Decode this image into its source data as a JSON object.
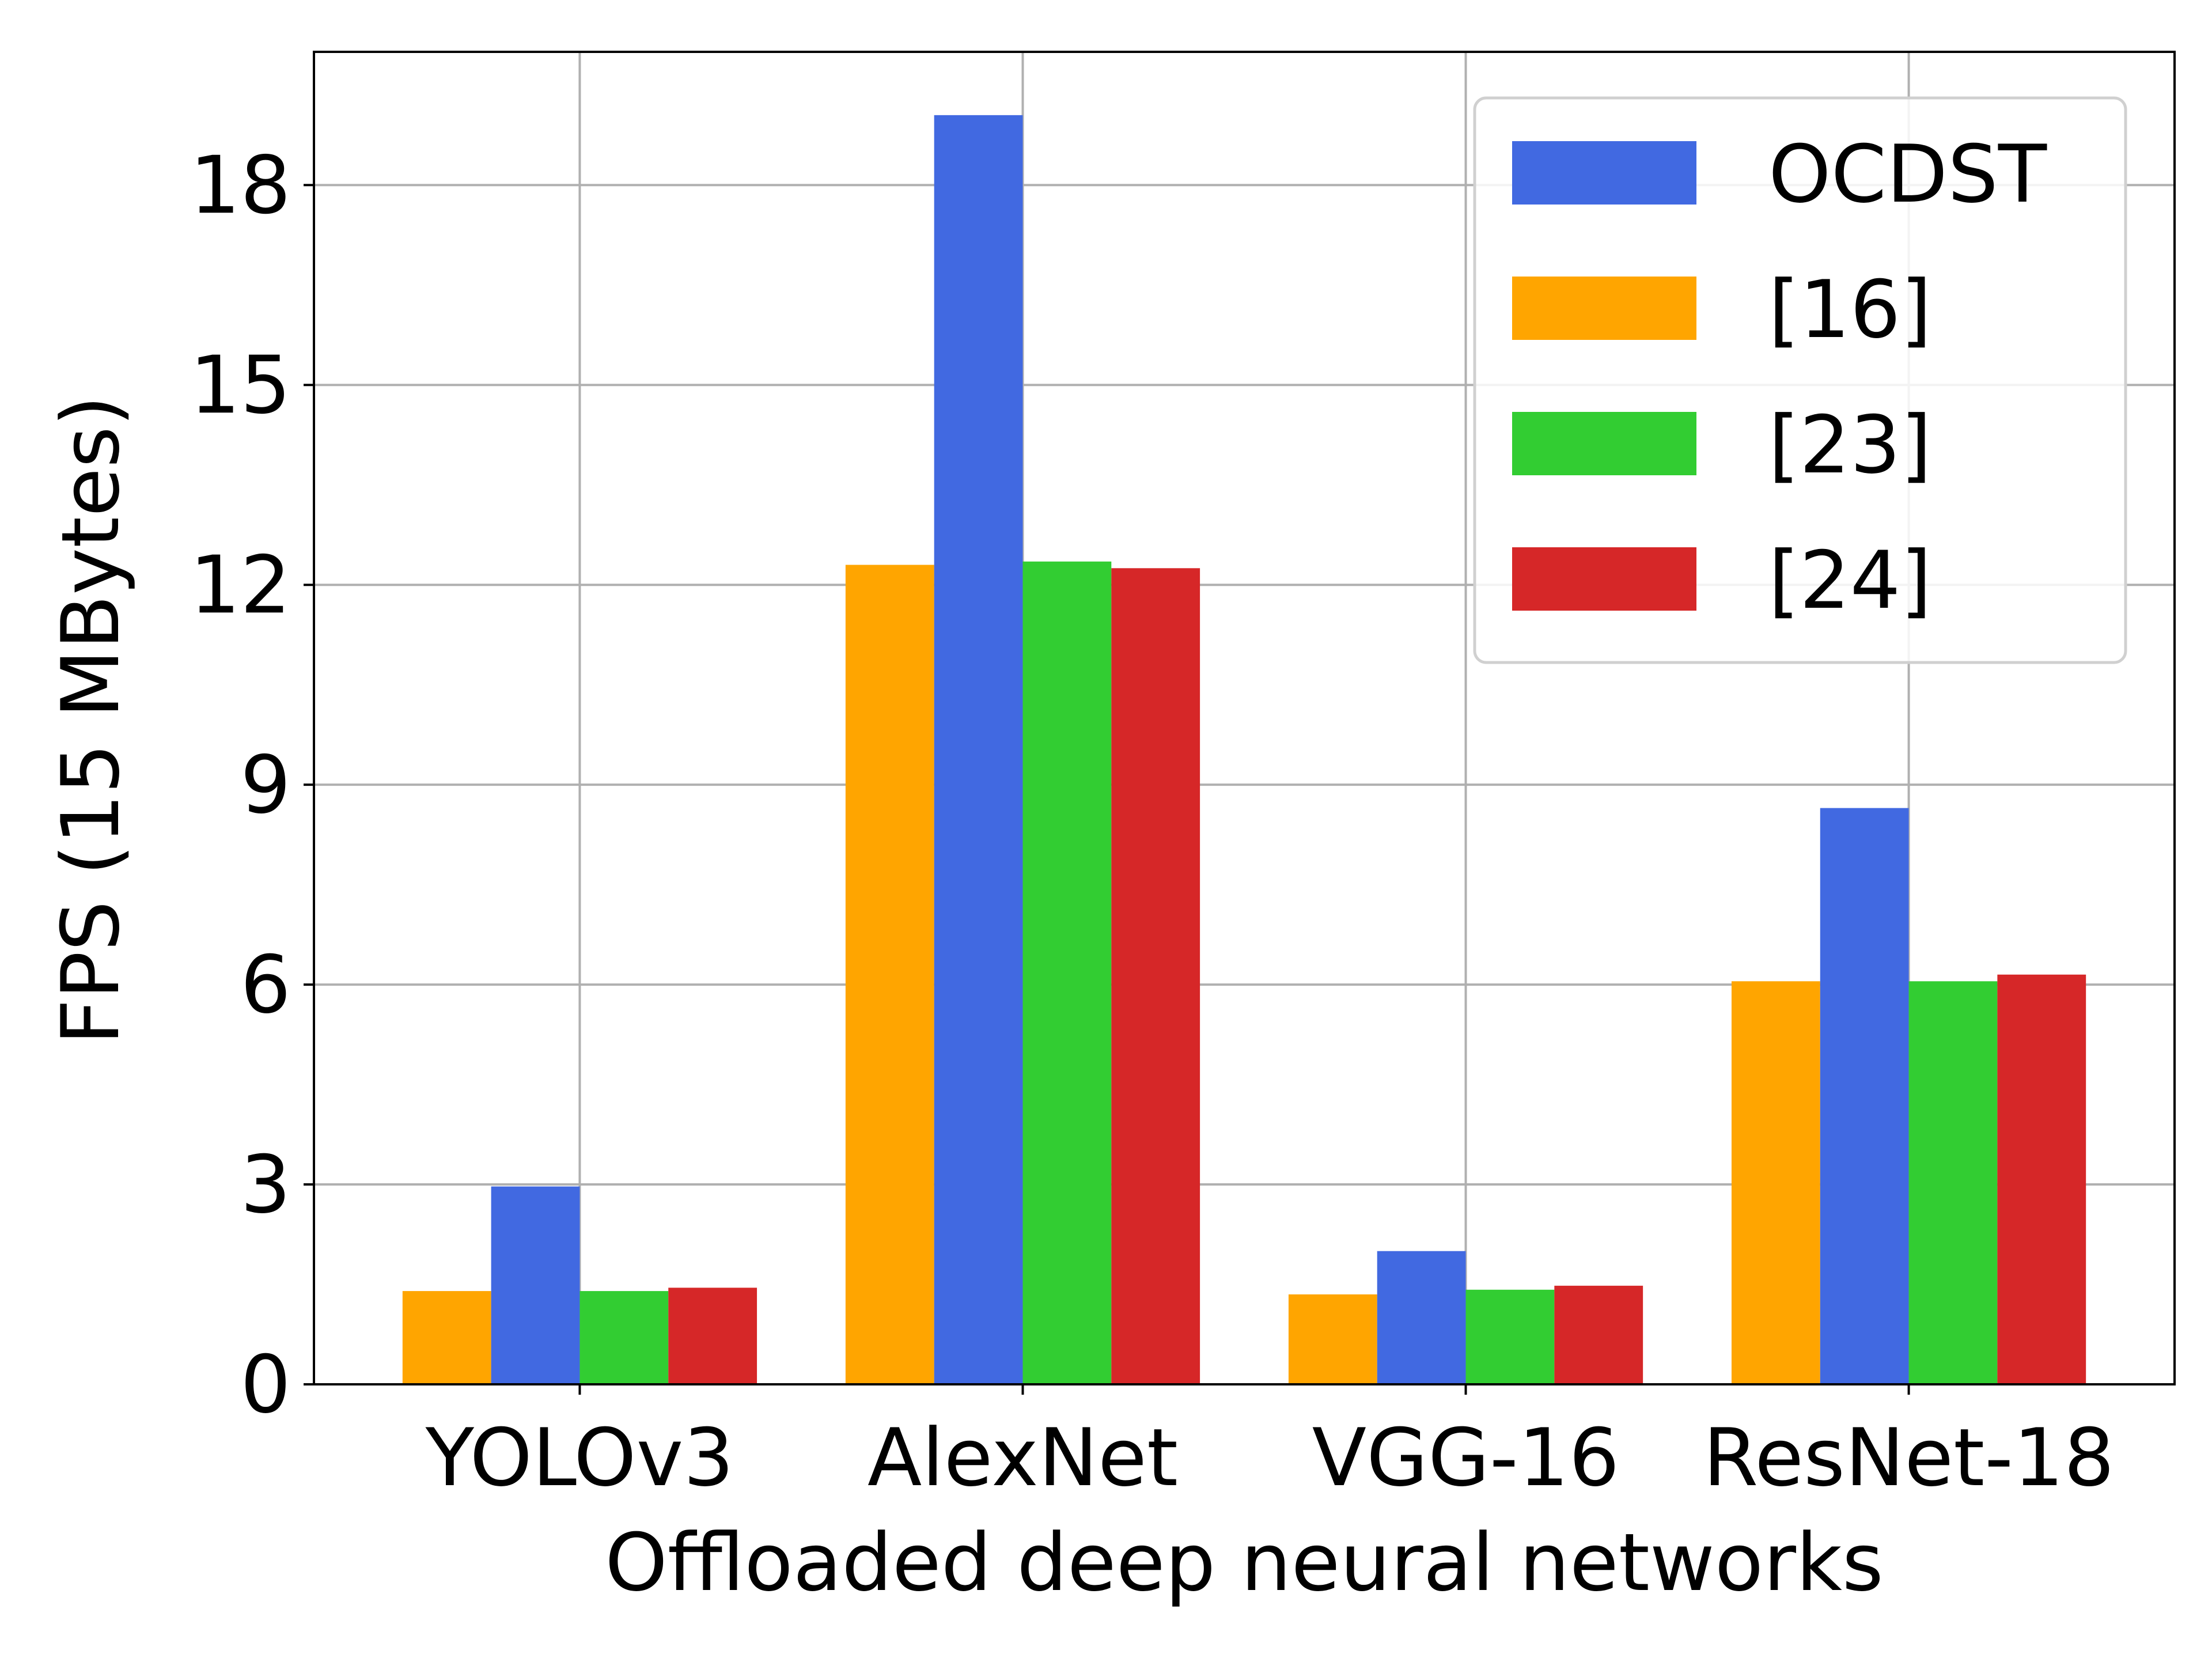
{
  "chart_data": {
    "type": "bar",
    "xlabel": "Offloaded deep neural networks",
    "ylabel": "FPS (15 MBytes)",
    "categories": [
      "YOLOv3",
      "AlexNet",
      "VGG-16",
      "ResNet-18"
    ],
    "y_ticks": [
      0,
      3,
      6,
      9,
      12,
      15,
      18
    ],
    "ylim": [
      0,
      20
    ],
    "grid": true,
    "legend_position": "top-right",
    "series": [
      {
        "name": "[16]",
        "color": "#FFA500",
        "values": [
          1.4,
          12.3,
          1.35,
          6.05
        ]
      },
      {
        "name": "OCDST",
        "color": "#4169E1",
        "values": [
          2.97,
          19.05,
          2.0,
          8.65
        ]
      },
      {
        "name": "[23]",
        "color": "#32CD32",
        "values": [
          1.4,
          12.35,
          1.42,
          6.05
        ]
      },
      {
        "name": "[24]",
        "color": "#D62728",
        "values": [
          1.45,
          12.25,
          1.48,
          6.15
        ]
      }
    ],
    "legend_order": [
      "OCDST",
      "[16]",
      "[23]",
      "[24]"
    ]
  }
}
